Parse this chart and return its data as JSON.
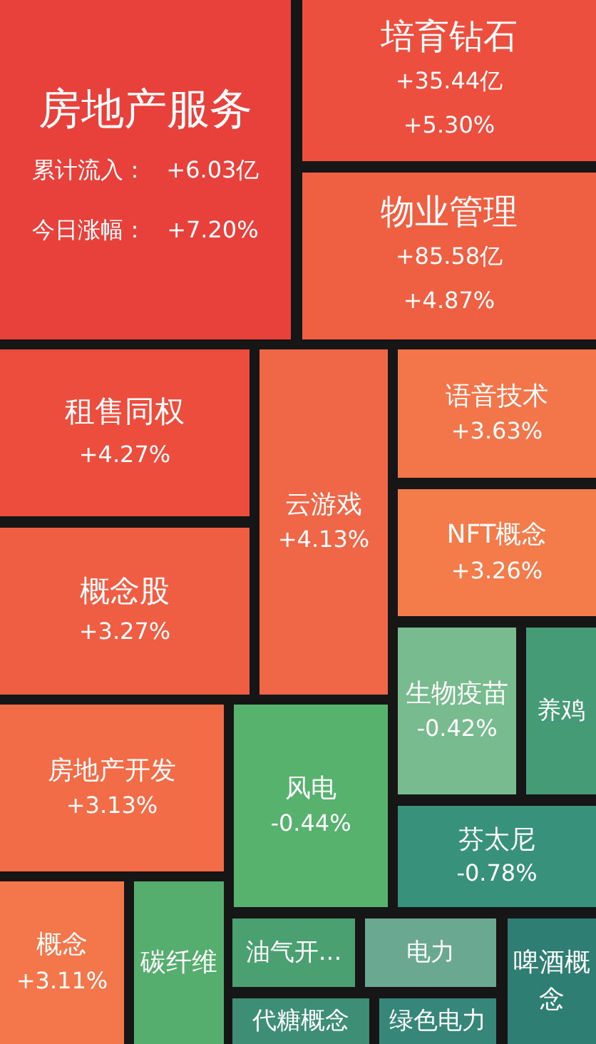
{
  "chart_data": {
    "type": "other",
    "categories": [
      "房地产服务",
      "培育钻石",
      "物业管理",
      "租售同权",
      "云游戏",
      "语音技术",
      "NFT概念",
      "概念股",
      "生物疫苗",
      "养鸡",
      "房地产开发",
      "风电",
      "芬太尼",
      "概念",
      "碳纤维",
      "油气开...",
      "电力",
      "啤酒概念",
      "代糖概念",
      "绿色电力"
    ],
    "values": [
      7.2,
      5.3,
      4.87,
      4.27,
      4.13,
      3.63,
      3.26,
      3.27,
      -0.42,
      null,
      3.13,
      -0.44,
      -0.78,
      3.11,
      null,
      null,
      null,
      null,
      null,
      null
    ],
    "value_labels": [
      "+7.20%",
      "+5.30%",
      "+4.87%",
      "+4.27%",
      "+4.13%",
      "+3.63%",
      "+3.26%",
      "+3.27%",
      "-0.42%",
      null,
      "+3.13%",
      "-0.44%",
      "-0.78%",
      "+3.11%",
      null,
      null,
      null,
      null,
      null,
      null
    ],
    "colors": [
      "#e8403a",
      "#ec4f3e",
      "#ef5f42",
      "#ec4d3d",
      "#f06747",
      "#f3754a",
      "#f47c4b",
      "#ef5d43",
      "#78bb8e",
      "#459b76",
      "#f26c47",
      "#57b26e",
      "#38917a",
      "#f3774a",
      "#55ae6e",
      "#4aa071",
      "#6aa892",
      "#2f7e73",
      "#3d8e74",
      "#36877a"
    ],
    "annotations": [
      "累计流入：",
      "+6.03亿",
      "今日涨幅：",
      "+35.44亿",
      "+85.58亿"
    ]
  }
}
